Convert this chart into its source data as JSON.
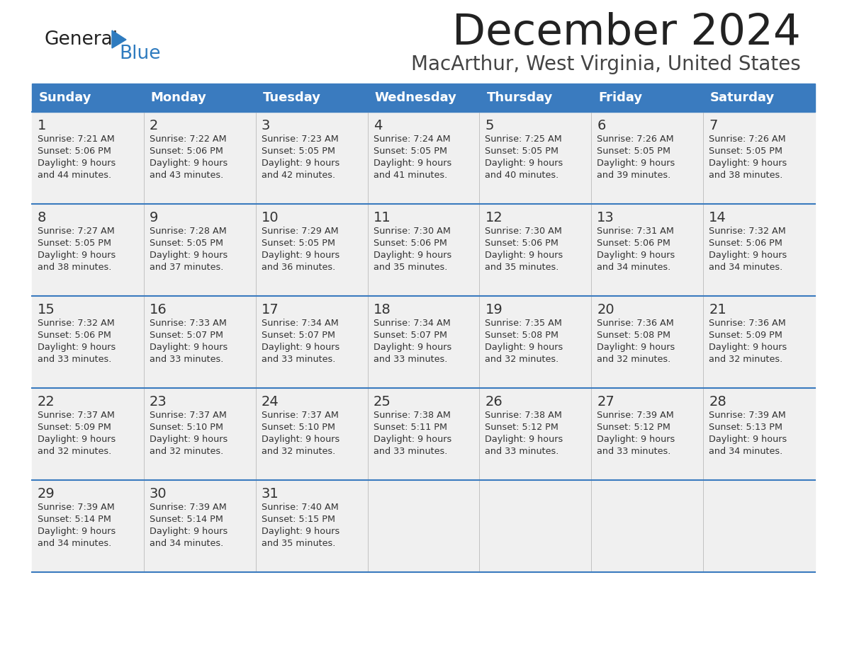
{
  "title": "December 2024",
  "subtitle": "MacArthur, West Virginia, United States",
  "days_of_week": [
    "Sunday",
    "Monday",
    "Tuesday",
    "Wednesday",
    "Thursday",
    "Friday",
    "Saturday"
  ],
  "header_bg": "#3a7bbf",
  "header_text_color": "#ffffff",
  "cell_bg": "#f0f0f0",
  "divider_color": "#3a7bbf",
  "text_color": "#333333",
  "title_color": "#222222",
  "subtitle_color": "#444444",
  "logo_general_color": "#222222",
  "logo_blue_color": "#2e7bbf",
  "weeks": [
    [
      {
        "day": 1,
        "sunrise": "7:21 AM",
        "sunset": "5:06 PM",
        "daylight": "9 hours and 44 minutes."
      },
      {
        "day": 2,
        "sunrise": "7:22 AM",
        "sunset": "5:06 PM",
        "daylight": "9 hours and 43 minutes."
      },
      {
        "day": 3,
        "sunrise": "7:23 AM",
        "sunset": "5:05 PM",
        "daylight": "9 hours and 42 minutes."
      },
      {
        "day": 4,
        "sunrise": "7:24 AM",
        "sunset": "5:05 PM",
        "daylight": "9 hours and 41 minutes."
      },
      {
        "day": 5,
        "sunrise": "7:25 AM",
        "sunset": "5:05 PM",
        "daylight": "9 hours and 40 minutes."
      },
      {
        "day": 6,
        "sunrise": "7:26 AM",
        "sunset": "5:05 PM",
        "daylight": "9 hours and 39 minutes."
      },
      {
        "day": 7,
        "sunrise": "7:26 AM",
        "sunset": "5:05 PM",
        "daylight": "9 hours and 38 minutes."
      }
    ],
    [
      {
        "day": 8,
        "sunrise": "7:27 AM",
        "sunset": "5:05 PM",
        "daylight": "9 hours and 38 minutes."
      },
      {
        "day": 9,
        "sunrise": "7:28 AM",
        "sunset": "5:05 PM",
        "daylight": "9 hours and 37 minutes."
      },
      {
        "day": 10,
        "sunrise": "7:29 AM",
        "sunset": "5:05 PM",
        "daylight": "9 hours and 36 minutes."
      },
      {
        "day": 11,
        "sunrise": "7:30 AM",
        "sunset": "5:06 PM",
        "daylight": "9 hours and 35 minutes."
      },
      {
        "day": 12,
        "sunrise": "7:30 AM",
        "sunset": "5:06 PM",
        "daylight": "9 hours and 35 minutes."
      },
      {
        "day": 13,
        "sunrise": "7:31 AM",
        "sunset": "5:06 PM",
        "daylight": "9 hours and 34 minutes."
      },
      {
        "day": 14,
        "sunrise": "7:32 AM",
        "sunset": "5:06 PM",
        "daylight": "9 hours and 34 minutes."
      }
    ],
    [
      {
        "day": 15,
        "sunrise": "7:32 AM",
        "sunset": "5:06 PM",
        "daylight": "9 hours and 33 minutes."
      },
      {
        "day": 16,
        "sunrise": "7:33 AM",
        "sunset": "5:07 PM",
        "daylight": "9 hours and 33 minutes."
      },
      {
        "day": 17,
        "sunrise": "7:34 AM",
        "sunset": "5:07 PM",
        "daylight": "9 hours and 33 minutes."
      },
      {
        "day": 18,
        "sunrise": "7:34 AM",
        "sunset": "5:07 PM",
        "daylight": "9 hours and 33 minutes."
      },
      {
        "day": 19,
        "sunrise": "7:35 AM",
        "sunset": "5:08 PM",
        "daylight": "9 hours and 32 minutes."
      },
      {
        "day": 20,
        "sunrise": "7:36 AM",
        "sunset": "5:08 PM",
        "daylight": "9 hours and 32 minutes."
      },
      {
        "day": 21,
        "sunrise": "7:36 AM",
        "sunset": "5:09 PM",
        "daylight": "9 hours and 32 minutes."
      }
    ],
    [
      {
        "day": 22,
        "sunrise": "7:37 AM",
        "sunset": "5:09 PM",
        "daylight": "9 hours and 32 minutes."
      },
      {
        "day": 23,
        "sunrise": "7:37 AM",
        "sunset": "5:10 PM",
        "daylight": "9 hours and 32 minutes."
      },
      {
        "day": 24,
        "sunrise": "7:37 AM",
        "sunset": "5:10 PM",
        "daylight": "9 hours and 32 minutes."
      },
      {
        "day": 25,
        "sunrise": "7:38 AM",
        "sunset": "5:11 PM",
        "daylight": "9 hours and 33 minutes."
      },
      {
        "day": 26,
        "sunrise": "7:38 AM",
        "sunset": "5:12 PM",
        "daylight": "9 hours and 33 minutes."
      },
      {
        "day": 27,
        "sunrise": "7:39 AM",
        "sunset": "5:12 PM",
        "daylight": "9 hours and 33 minutes."
      },
      {
        "day": 28,
        "sunrise": "7:39 AM",
        "sunset": "5:13 PM",
        "daylight": "9 hours and 34 minutes."
      }
    ],
    [
      {
        "day": 29,
        "sunrise": "7:39 AM",
        "sunset": "5:14 PM",
        "daylight": "9 hours and 34 minutes."
      },
      {
        "day": 30,
        "sunrise": "7:39 AM",
        "sunset": "5:14 PM",
        "daylight": "9 hours and 34 minutes."
      },
      {
        "day": 31,
        "sunrise": "7:40 AM",
        "sunset": "5:15 PM",
        "daylight": "9 hours and 35 minutes."
      },
      null,
      null,
      null,
      null
    ]
  ]
}
